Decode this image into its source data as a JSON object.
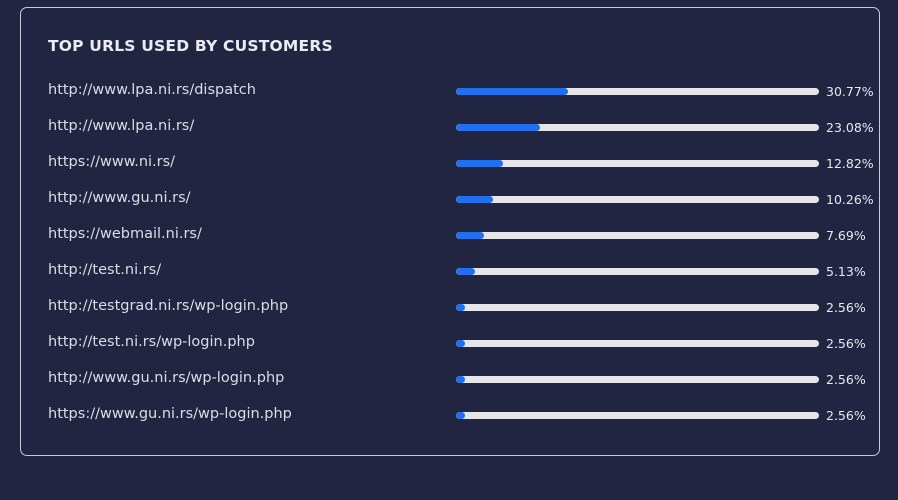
{
  "card": {
    "title": "TOP URLS USED BY CUSTOMERS"
  },
  "colors": {
    "background": "#222541",
    "bar_fill": "#1f6fee",
    "bar_track": "#e6e6ea",
    "border": "#c9cad6"
  },
  "items": [
    {
      "url": "http://www.lpa.ni.rs/dispatch",
      "percent_label": "30.77%",
      "percent": 30.77
    },
    {
      "url": "http://www.lpa.ni.rs/",
      "percent_label": "23.08%",
      "percent": 23.08
    },
    {
      "url": "https://www.ni.rs/",
      "percent_label": "12.82%",
      "percent": 12.82
    },
    {
      "url": "http://www.gu.ni.rs/",
      "percent_label": "10.26%",
      "percent": 10.26
    },
    {
      "url": "https://webmail.ni.rs/",
      "percent_label": "7.69%",
      "percent": 7.69
    },
    {
      "url": "http://test.ni.rs/",
      "percent_label": "5.13%",
      "percent": 5.13
    },
    {
      "url": "http://testgrad.ni.rs/wp-login.php",
      "percent_label": "2.56%",
      "percent": 2.56
    },
    {
      "url": "http://test.ni.rs/wp-login.php",
      "percent_label": "2.56%",
      "percent": 2.56
    },
    {
      "url": "http://www.gu.ni.rs/wp-login.php",
      "percent_label": "2.56%",
      "percent": 2.56
    },
    {
      "url": "https://www.gu.ni.rs/wp-login.php",
      "percent_label": "2.56%",
      "percent": 2.56
    }
  ]
}
